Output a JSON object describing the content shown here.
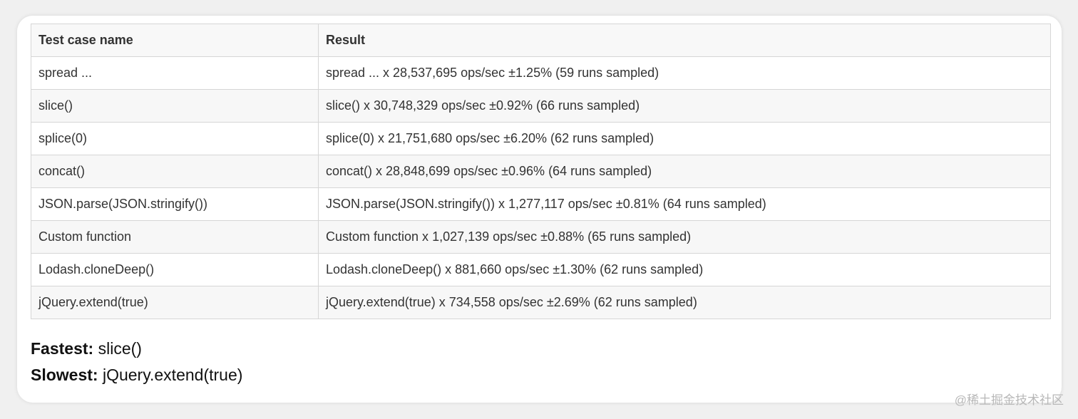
{
  "table": {
    "headers": [
      "Test case name",
      "Result"
    ],
    "rows": [
      {
        "name": "spread ...",
        "result": "spread ... x 28,537,695 ops/sec ±1.25% (59 runs sampled)"
      },
      {
        "name": "slice()",
        "result": "slice() x 30,748,329 ops/sec ±0.92% (66 runs sampled)"
      },
      {
        "name": "splice(0)",
        "result": "splice(0) x 21,751,680 ops/sec ±6.20% (62 runs sampled)"
      },
      {
        "name": "concat()",
        "result": "concat() x 28,848,699 ops/sec ±0.96% (64 runs sampled)"
      },
      {
        "name": "JSON.parse(JSON.stringify())",
        "result": "JSON.parse(JSON.stringify()) x 1,277,117 ops/sec ±0.81% (64 runs sampled)"
      },
      {
        "name": "Custom function",
        "result": "Custom function x 1,027,139 ops/sec ±0.88% (65 runs sampled)"
      },
      {
        "name": "Lodash.cloneDeep()",
        "result": "Lodash.cloneDeep() x 881,660 ops/sec ±1.30% (62 runs sampled)"
      },
      {
        "name": "jQuery.extend(true)",
        "result": "jQuery.extend(true) x 734,558 ops/sec ±2.69% (62 runs sampled)"
      }
    ]
  },
  "summary": {
    "fastest_label": "Fastest:",
    "fastest_value": "slice()",
    "slowest_label": "Slowest:",
    "slowest_value": "jQuery.extend(true)"
  },
  "watermark": "@稀土掘金技术社区"
}
